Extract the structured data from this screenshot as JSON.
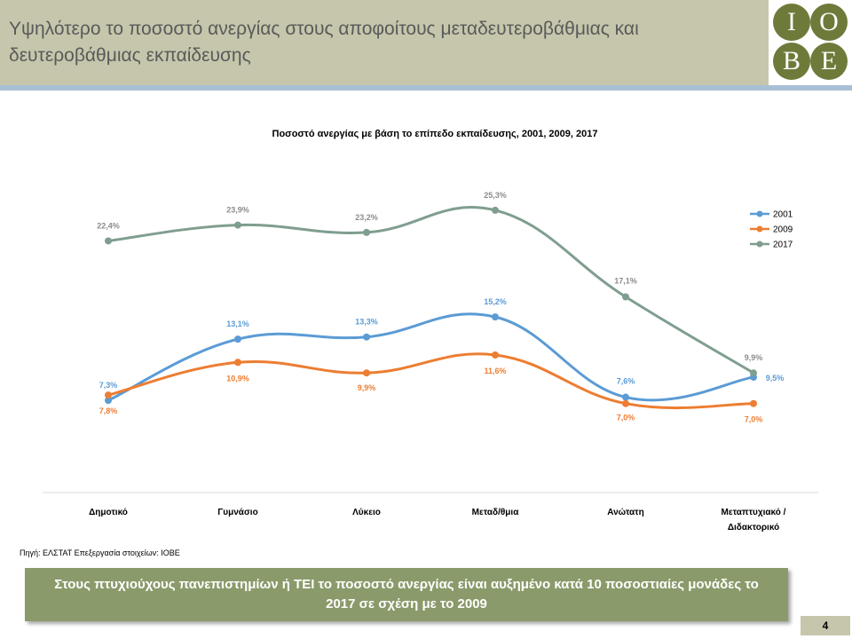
{
  "header": {
    "title": "Υψηλότερο το ποσοστό ανεργίας στους αποφοίτους μεταδευτεροβάθμιας και δευτεροβάθμιας εκπαίδευσης",
    "logo_letters": [
      "I",
      "O",
      "B",
      "E"
    ]
  },
  "chart_data": {
    "type": "line",
    "title": "Ποσοστό ανεργίας με βάση το επίπεδο εκπαίδευσης, 2001, 2009, 2017",
    "xlabel": "",
    "ylabel": "",
    "ylim": [
      0,
      30
    ],
    "grid": false,
    "legend_position": "right",
    "categories": [
      "Δημοτικό",
      "Γυμνάσιο",
      "Λύκειο",
      "Μεταδ/θμια",
      "Ανώτατη",
      "Μεταπτυχιακό / Διδακτορικό"
    ],
    "series": [
      {
        "name": "2001",
        "color": "#5b9bd5",
        "values": [
          7.3,
          13.1,
          13.3,
          15.2,
          7.6,
          9.5
        ],
        "labels": [
          "7,3%",
          "13,1%",
          "13,3%",
          "15,2%",
          "7,6%",
          "9,5%"
        ]
      },
      {
        "name": "2009",
        "color": "#ed7d31",
        "values": [
          7.8,
          10.9,
          9.9,
          11.6,
          7.0,
          7.0
        ],
        "labels": [
          "7,8%",
          "10,9%",
          "9,9%",
          "11,6%",
          "7,0%",
          "7,0%"
        ]
      },
      {
        "name": "2017",
        "color": "#7f9e8f",
        "values": [
          22.4,
          23.9,
          23.2,
          25.3,
          17.1,
          9.9
        ],
        "labels": [
          "22,4%",
          "23,9%",
          "23,2%",
          "25,3%",
          "17,1%",
          "9,9%"
        ]
      }
    ]
  },
  "source": "Πηγή: ΕΛΣΤΑΤ Επεξεργασία στοιχείων: ΙΟΒΕ",
  "callout": "Στους πτυχιούχους πανεπιστημίων ή ΤΕΙ το ποσοστό ανεργίας είναι αυξημένο κατά 10 ποσοστιαίες μονάδες το 2017 σε σχέση με το 2009",
  "page_number": "4"
}
